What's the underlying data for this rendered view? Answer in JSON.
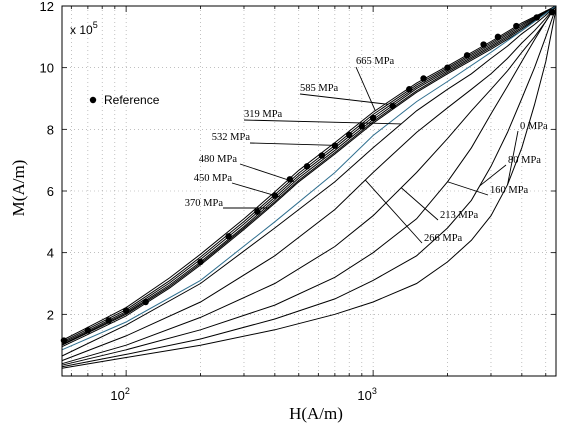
{
  "chart_data": {
    "type": "line",
    "xlabel": "H(A/m)",
    "ylabel": "M(A/m)",
    "x_scale": "log",
    "xlim": [
      55,
      5500
    ],
    "ylim": [
      0,
      1200000
    ],
    "grid": true,
    "y_multiplier": {
      "base": "x 10",
      "exponent": "5"
    },
    "x_ticks": [
      {
        "value": 100,
        "base": "10",
        "exp": "2"
      },
      {
        "value": 1000,
        "base": "10",
        "exp": "3"
      }
    ],
    "y_ticks": [
      {
        "value": 200000,
        "label": "2"
      },
      {
        "value": 400000,
        "label": "4"
      },
      {
        "value": 600000,
        "label": "6"
      },
      {
        "value": 800000,
        "label": "8"
      },
      {
        "value": 1000000,
        "label": "10"
      },
      {
        "value": 1200000,
        "label": "12"
      }
    ],
    "legend": {
      "position": "top-left",
      "entries": [
        {
          "name": "Reference",
          "marker": "dot"
        }
      ]
    },
    "reference": {
      "name": "Reference",
      "x": [
        56,
        70,
        85,
        100,
        120,
        200,
        260,
        340,
        400,
        460,
        540,
        620,
        700,
        800,
        900,
        1000,
        1200,
        1400,
        1600,
        2000,
        2400,
        2800,
        3200,
        3800,
        4600,
        5300
      ],
      "y": [
        115000,
        148000,
        180000,
        212000,
        240000,
        370000,
        453000,
        533000,
        585000,
        638000,
        680000,
        715000,
        747000,
        782000,
        810000,
        837000,
        876000,
        930000,
        965000,
        1000000,
        1040000,
        1075000,
        1100000,
        1135000,
        1163000,
        1180000
      ]
    },
    "series": [
      {
        "name": "0 MPa",
        "x": [
          55,
          100,
          200,
          400,
          700,
          1000,
          1500,
          2000,
          2500,
          3000,
          3500,
          4000,
          4500,
          5000,
          5500
        ],
        "y": [
          25000,
          60000,
          100000,
          150000,
          200000,
          240000,
          300000,
          370000,
          440000,
          520000,
          620000,
          740000,
          880000,
          1020000,
          1190000
        ]
      },
      {
        "name": "80 MPa",
        "x": [
          55,
          100,
          200,
          400,
          700,
          1000,
          1500,
          2000,
          2500,
          3000,
          3500,
          4000,
          4500,
          5000,
          5500
        ],
        "y": [
          30000,
          70000,
          120000,
          185000,
          250000,
          310000,
          390000,
          480000,
          570000,
          680000,
          790000,
          900000,
          1000000,
          1100000,
          1195000
        ]
      },
      {
        "name": "160 MPa",
        "x": [
          55,
          100,
          200,
          400,
          700,
          1000,
          1500,
          2000,
          2500,
          3000,
          3500,
          4000,
          4500,
          5000,
          5500
        ],
        "y": [
          35000,
          85000,
          150000,
          230000,
          320000,
          400000,
          510000,
          630000,
          740000,
          850000,
          940000,
          1020000,
          1090000,
          1150000,
          1200000
        ]
      },
      {
        "name": "213 MPa",
        "x": [
          55,
          100,
          200,
          400,
          700,
          1000,
          1500,
          2000,
          2500,
          3000,
          3500,
          4000,
          4500,
          5000,
          5500
        ],
        "y": [
          40000,
          100000,
          190000,
          300000,
          420000,
          520000,
          660000,
          770000,
          860000,
          930000,
          990000,
          1050000,
          1100000,
          1150000,
          1200000
        ]
      },
      {
        "name": "266 MPa",
        "x": [
          55,
          100,
          200,
          400,
          700,
          1000,
          1500,
          2000,
          2500,
          3000,
          3500,
          4000,
          4500,
          5000,
          5500
        ],
        "y": [
          50000,
          130000,
          240000,
          390000,
          540000,
          660000,
          790000,
          870000,
          930000,
          980000,
          1030000,
          1080000,
          1120000,
          1160000,
          1200000
        ]
      },
      {
        "name": "319 MPa",
        "x": [
          55,
          100,
          200,
          400,
          700,
          1000,
          1500,
          2000,
          2500,
          3000,
          3500,
          4000,
          4500,
          5000,
          5500
        ],
        "y": [
          65000,
          165000,
          300000,
          480000,
          630000,
          740000,
          860000,
          930000,
          980000,
          1030000,
          1070000,
          1110000,
          1140000,
          1170000,
          1200000
        ]
      },
      {
        "name": "370 MPa",
        "x": [
          55,
          70,
          100,
          150,
          200,
          300,
          400,
          500,
          700,
          1000,
          1500,
          2000,
          3000,
          4000,
          5500
        ],
        "y": [
          95000,
          135000,
          195000,
          285000,
          360000,
          475000,
          560000,
          630000,
          720000,
          820000,
          920000,
          980000,
          1060000,
          1120000,
          1200000
        ]
      },
      {
        "name": "450 MPa",
        "x": [
          55,
          70,
          100,
          150,
          200,
          300,
          400,
          500,
          700,
          1000,
          1500,
          2000,
          3000,
          4000,
          5500
        ],
        "y": [
          100000,
          140000,
          200000,
          290000,
          365000,
          480000,
          565000,
          635000,
          725000,
          825000,
          925000,
          985000,
          1065000,
          1125000,
          1200000
        ]
      },
      {
        "name": "480 MPa",
        "x": [
          55,
          70,
          100,
          150,
          200,
          300,
          400,
          500,
          700,
          1000,
          1500,
          2000,
          3000,
          4000,
          5500
        ],
        "y": [
          102000,
          143000,
          204000,
          295000,
          370000,
          485000,
          572000,
          642000,
          732000,
          832000,
          932000,
          990000,
          1070000,
          1130000,
          1200000
        ]
      },
      {
        "name": "532 MPa",
        "x": [
          55,
          70,
          100,
          150,
          200,
          300,
          400,
          500,
          700,
          1000,
          1500,
          2000,
          3000,
          4000,
          5500
        ],
        "y": [
          106000,
          147000,
          209000,
          302000,
          378000,
          493000,
          580000,
          650000,
          740000,
          840000,
          938000,
          995000,
          1075000,
          1135000,
          1200000
        ]
      },
      {
        "name": "585 MPa",
        "x": [
          55,
          70,
          100,
          150,
          200,
          300,
          400,
          500,
          700,
          1000,
          1500,
          2000,
          3000,
          4000,
          5500
        ],
        "y": [
          110000,
          152000,
          215000,
          309000,
          386000,
          501000,
          588000,
          658000,
          748000,
          848000,
          944000,
          1000000,
          1080000,
          1140000,
          1200000
        ]
      },
      {
        "name": "665 MPa",
        "x": [
          55,
          70,
          100,
          150,
          200,
          300,
          400,
          500,
          700,
          1000,
          1500,
          2000,
          3000,
          4000,
          5500
        ],
        "y": [
          115000,
          158000,
          222000,
          318000,
          395000,
          510000,
          597000,
          667000,
          757000,
          856000,
          950000,
          1005000,
          1085000,
          1145000,
          1200000
        ]
      }
    ],
    "highlight_series": [
      {
        "name": "",
        "color": "#2f6f8f",
        "x": [
          55,
          100,
          200,
          400,
          700,
          1000,
          1500,
          2000,
          3000,
          4000,
          5500
        ],
        "y": [
          85000,
          175000,
          310000,
          500000,
          660000,
          780000,
          890000,
          955000,
          1050000,
          1120000,
          1200000
        ]
      }
    ],
    "curve_labels": [
      {
        "series": "665 MPa",
        "text": "665 MPa"
      },
      {
        "series": "585 MPa",
        "text": "585 MPa"
      },
      {
        "series": "319 MPa",
        "text": "319 MPa"
      },
      {
        "series": "532 MPa",
        "text": "532 MPa"
      },
      {
        "series": "480 MPa",
        "text": "480 MPa"
      },
      {
        "series": "450 MPa",
        "text": "450 MPa"
      },
      {
        "series": "370 MPa",
        "text": "370 MPa"
      },
      {
        "series": "0 MPa",
        "text": "0 MPa"
      },
      {
        "series": "80 MPa",
        "text": "80 MPa"
      },
      {
        "series": "160 MPa",
        "text": "160 MPa"
      },
      {
        "series": "213 MPa",
        "text": "213 MPa"
      },
      {
        "series": "266 MPa",
        "text": "266 MPa"
      }
    ]
  }
}
